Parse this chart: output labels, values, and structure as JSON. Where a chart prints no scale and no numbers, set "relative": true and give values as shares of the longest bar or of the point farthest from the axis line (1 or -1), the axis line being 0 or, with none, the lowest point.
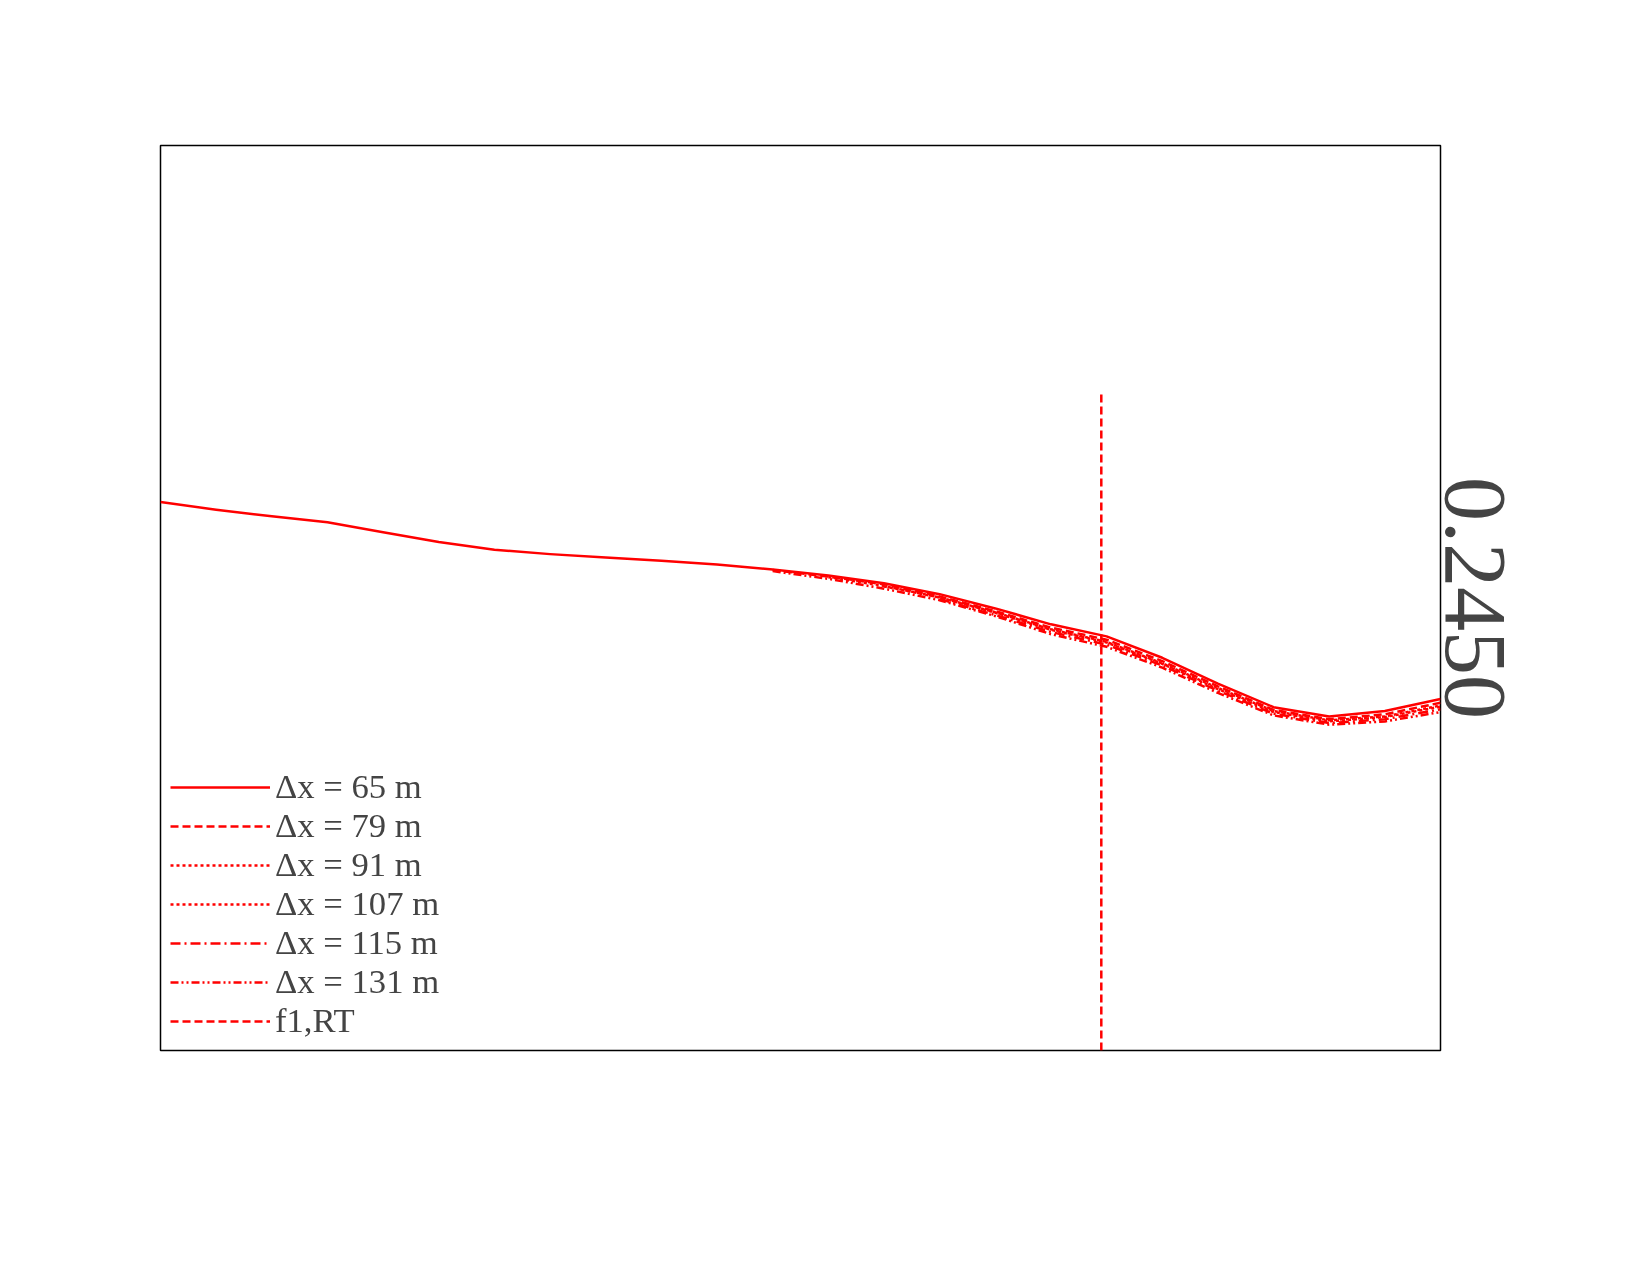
{
  "chart_data": {
    "type": "line",
    "relative": true,
    "grid": false,
    "legend": "bottom left",
    "categories": [
      null,
      null,
      null,
      null,
      null,
      null,
      null,
      null,
      null,
      null,
      null,
      null,
      null,
      null,
      null,
      null,
      null,
      null,
      null,
      null,
      null,
      null,
      null,
      null
    ],
    "annotations": [
      "0.2450"
    ],
    "ref_lines": [
      {
        "axis": "x",
        "label": "f1,RT",
        "color": "#ff0000",
        "line_style": "dashed"
      }
    ],
    "series": [
      {
        "name": "Δx = 65 m",
        "color": "#ff0000",
        "line_style": "solid",
        "values": [
          1.0,
          0.986,
          0.974,
          0.963,
          0.945,
          0.927,
          0.913,
          0.905,
          0.899,
          0.893,
          0.886,
          0.877,
          0.866,
          0.852,
          0.832,
          0.806,
          0.777,
          0.755,
          0.716,
          0.669,
          0.626,
          0.609,
          0.619,
          0.641
        ]
      },
      {
        "name": "Δx = 79 m",
        "color": "#ff0000",
        "line_style": "dashed",
        "values": [
          null,
          null,
          null,
          null,
          null,
          null,
          null,
          null,
          null,
          null,
          null,
          0.876,
          0.864,
          0.85,
          0.828,
          0.801,
          0.771,
          0.749,
          0.71,
          0.664,
          0.621,
          0.604,
          0.613,
          0.634
        ]
      },
      {
        "name": "Δx = 91 m",
        "color": "#ff0000",
        "line_style": "dotted",
        "values": [
          null,
          null,
          null,
          null,
          null,
          null,
          null,
          null,
          null,
          null,
          null,
          null,
          0.863,
          0.847,
          0.826,
          0.799,
          0.768,
          0.745,
          0.706,
          0.661,
          0.619,
          0.602,
          0.609,
          0.629
        ]
      },
      {
        "name": "Δx = 107 m",
        "color": "#ff0000",
        "line_style": "dotted",
        "values": [
          null,
          null,
          null,
          null,
          null,
          null,
          null,
          null,
          null,
          null,
          null,
          null,
          null,
          0.846,
          0.826,
          0.798,
          0.767,
          0.744,
          0.705,
          0.659,
          0.617,
          0.6,
          0.608,
          0.627
        ]
      },
      {
        "name": "Δx = 115 m",
        "color": "#ff0000",
        "line_style": "dashdot",
        "values": [
          null,
          null,
          null,
          null,
          null,
          null,
          null,
          null,
          null,
          null,
          null,
          null,
          null,
          null,
          0.823,
          0.794,
          0.763,
          0.74,
          0.702,
          0.656,
          0.614,
          0.597,
          0.604,
          0.622
        ]
      },
      {
        "name": "Δx = 131 m",
        "color": "#ff0000",
        "line_style": "dashdotdot",
        "values": [
          null,
          null,
          null,
          null,
          null,
          null,
          null,
          null,
          null,
          null,
          null,
          0.874,
          0.86,
          0.842,
          0.821,
          0.792,
          0.759,
          0.736,
          0.698,
          0.652,
          0.611,
          0.594,
          0.6,
          0.617
        ]
      }
    ]
  }
}
